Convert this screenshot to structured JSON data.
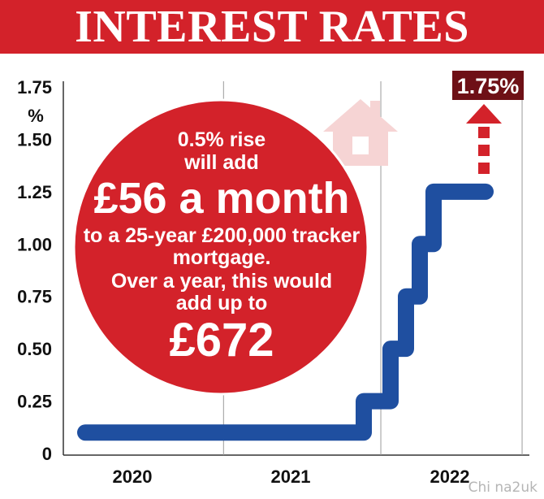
{
  "header": {
    "title": "INTEREST RATES"
  },
  "callout": {
    "lines": [
      "0.5% rise",
      "will add",
      "£56 a month",
      "to a 25-year £200,000 tracker",
      "mortgage.",
      "Over a year, this would",
      "add up to",
      "£672"
    ]
  },
  "projection_label": "1.75%",
  "watermark": "Chi na2uk",
  "colors": {
    "title_bg": "#d3222a",
    "line": "#1f4fa0",
    "circle": "#d3222a",
    "callout_box": "#6e1016",
    "arrow": "#d3222a",
    "house": "#f6d4d4"
  },
  "icons": [
    "house-icon",
    "arrow-up-icon"
  ],
  "chart_data": {
    "type": "line",
    "title": "INTEREST RATES",
    "ylabel": "%",
    "ylim": [
      0,
      1.75
    ],
    "yticks": [
      "0",
      "0.25",
      "0.50",
      "0.75",
      "1.00",
      "1.25",
      "1.50",
      "1.75"
    ],
    "x_tick_labels": [
      "2020",
      "2021",
      "2022"
    ],
    "series": [
      {
        "values_x": [
          2020.0,
          2021.95,
          2021.95,
          2022.0,
          2022.0,
          2022.1,
          2022.1,
          2022.2,
          2022.2,
          2022.3,
          2022.3,
          2022.4,
          2022.4,
          2022.6
        ],
        "values_y": [
          0.1,
          0.1,
          0.25,
          0.25,
          0.25,
          0.25,
          0.5,
          0.5,
          0.75,
          0.75,
          1.0,
          1.0,
          1.25,
          1.25
        ],
        "step_points": [
          [
            2020.0,
            0.1
          ],
          [
            2021.95,
            0.1
          ],
          [
            2021.95,
            0.25
          ],
          [
            2022.1,
            0.25
          ],
          [
            2022.1,
            0.5
          ],
          [
            2022.2,
            0.5
          ],
          [
            2022.2,
            0.75
          ],
          [
            2022.3,
            0.75
          ],
          [
            2022.3,
            1.0
          ],
          [
            2022.4,
            1.0
          ],
          [
            2022.4,
            1.25
          ],
          [
            2022.6,
            1.25
          ]
        ]
      }
    ],
    "projection": {
      "from": 1.25,
      "to": 1.75,
      "label": "1.75%"
    },
    "grid": true
  }
}
